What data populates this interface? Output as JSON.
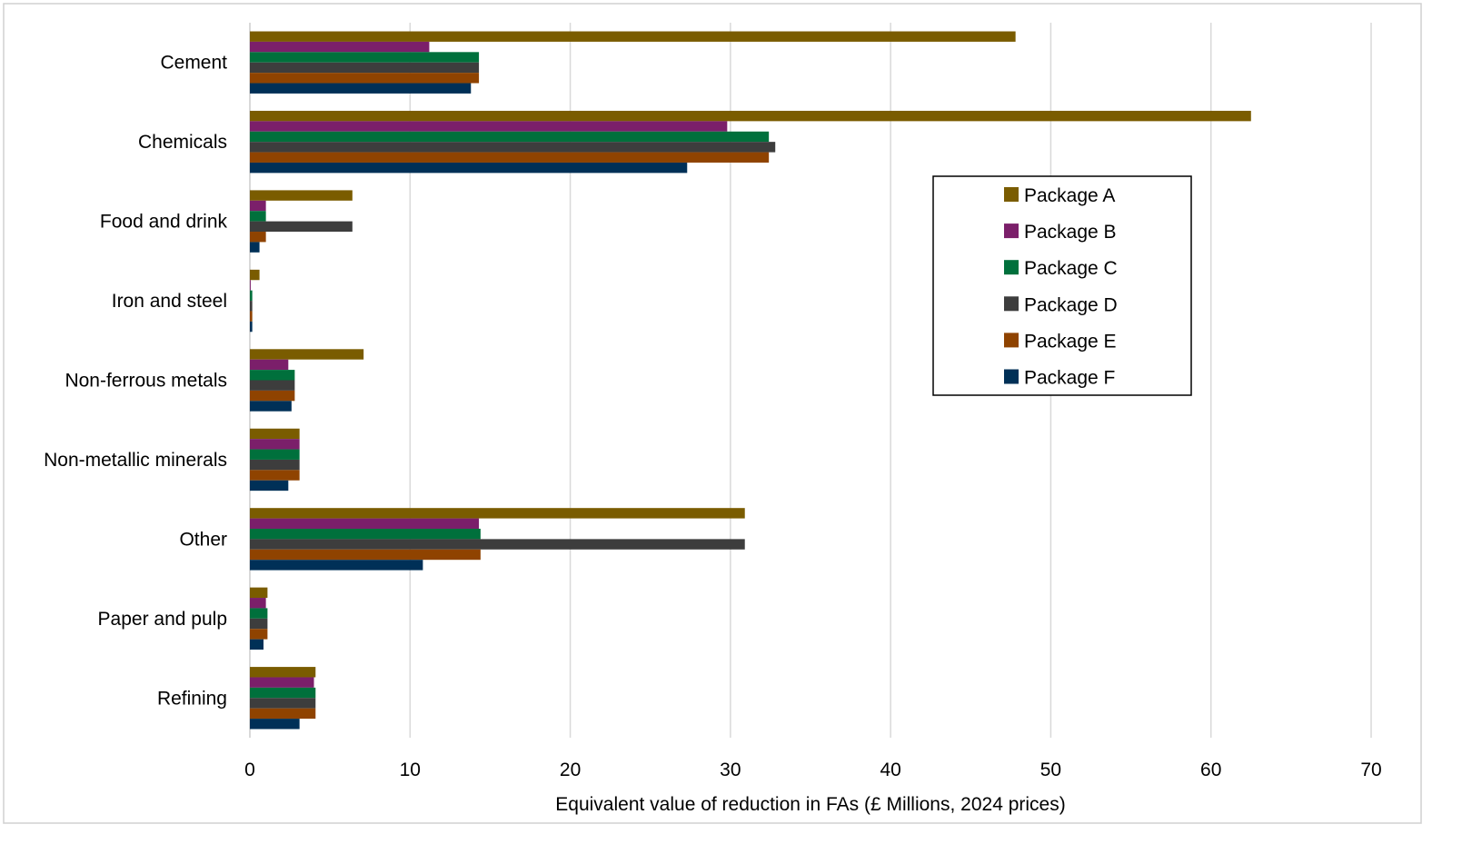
{
  "chart_data": {
    "type": "bar",
    "orientation": "horizontal",
    "title": "",
    "xlabel": "Equivalent value of reduction in FAs (£ Millions, 2024 prices)",
    "ylabel": "",
    "xlim": [
      0,
      70
    ],
    "xticks": [
      0,
      10,
      20,
      30,
      40,
      50,
      60,
      70
    ],
    "grid": true,
    "legend_position": "right",
    "categories": [
      "Cement",
      "Chemicals",
      "Food and drink",
      "Iron and steel",
      "Non-ferrous metals",
      "Non-metallic minerals",
      "Other",
      "Paper and pulp",
      "Refining"
    ],
    "series": [
      {
        "name": "Package A",
        "color": "#7a5c00",
        "values": [
          47.8,
          62.5,
          6.4,
          0.6,
          7.1,
          3.1,
          30.9,
          1.1,
          4.1
        ]
      },
      {
        "name": "Package B",
        "color": "#7b1f6a",
        "values": [
          11.2,
          29.8,
          1.0,
          0.05,
          2.4,
          3.1,
          14.3,
          1.0,
          4.0
        ]
      },
      {
        "name": "Package C",
        "color": "#00703c",
        "values": [
          14.3,
          32.4,
          1.0,
          0.15,
          2.8,
          3.1,
          14.4,
          1.1,
          4.1
        ]
      },
      {
        "name": "Package D",
        "color": "#3d3d3d",
        "values": [
          14.3,
          32.8,
          6.4,
          0.15,
          2.8,
          3.1,
          30.9,
          1.1,
          4.1
        ]
      },
      {
        "name": "Package E",
        "color": "#8f4300",
        "values": [
          14.3,
          32.4,
          1.0,
          0.15,
          2.8,
          3.1,
          14.4,
          1.1,
          4.1
        ]
      },
      {
        "name": "Package F",
        "color": "#003057",
        "values": [
          13.8,
          27.3,
          0.6,
          0.15,
          2.6,
          2.4,
          10.8,
          0.85,
          3.1
        ]
      }
    ]
  }
}
